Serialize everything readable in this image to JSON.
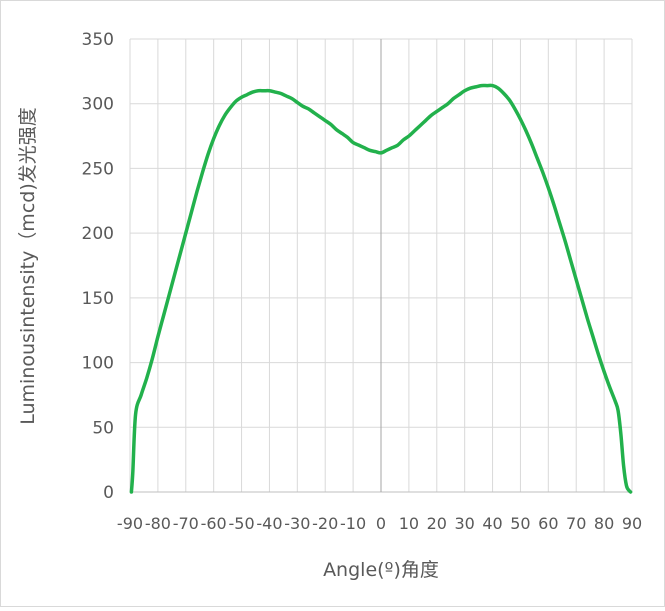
{
  "chart_data": {
    "type": "line",
    "title": "",
    "xlabel": "Angle(º)角度",
    "ylabel": "Luminousintensity（mcd)发光强度",
    "xlim": [
      -90,
      90
    ],
    "ylim": [
      0,
      350
    ],
    "x_ticks": [
      -90,
      -80,
      -70,
      -60,
      -50,
      -40,
      -30,
      -20,
      -10,
      0,
      10,
      20,
      30,
      40,
      50,
      60,
      70,
      80,
      90
    ],
    "y_ticks": [
      0,
      50,
      100,
      150,
      200,
      250,
      300,
      350
    ],
    "grid": true,
    "line_color": "#22b14c",
    "series": [
      {
        "points": [
          [
            -89.5,
            0
          ],
          [
            -89,
            15
          ],
          [
            -88,
            60
          ],
          [
            -86,
            75
          ],
          [
            -84,
            88
          ],
          [
            -82,
            103
          ],
          [
            -80,
            120
          ],
          [
            -78,
            136
          ],
          [
            -76,
            152
          ],
          [
            -74,
            168
          ],
          [
            -72,
            184
          ],
          [
            -70,
            200
          ],
          [
            -68,
            216
          ],
          [
            -66,
            232
          ],
          [
            -64,
            247
          ],
          [
            -62,
            261
          ],
          [
            -60,
            273
          ],
          [
            -58,
            283
          ],
          [
            -56,
            291
          ],
          [
            -54,
            297
          ],
          [
            -52,
            302
          ],
          [
            -50,
            305
          ],
          [
            -48,
            307
          ],
          [
            -46,
            309
          ],
          [
            -44,
            310
          ],
          [
            -42,
            310
          ],
          [
            -40,
            310
          ],
          [
            -38,
            309
          ],
          [
            -36,
            308
          ],
          [
            -34,
            306
          ],
          [
            -32,
            304
          ],
          [
            -30,
            301
          ],
          [
            -28,
            298
          ],
          [
            -26,
            296
          ],
          [
            -24,
            293
          ],
          [
            -22,
            290
          ],
          [
            -20,
            287
          ],
          [
            -18,
            284
          ],
          [
            -16,
            280
          ],
          [
            -14,
            277
          ],
          [
            -12,
            274
          ],
          [
            -10,
            270
          ],
          [
            -8,
            268
          ],
          [
            -6,
            266
          ],
          [
            -4,
            264
          ],
          [
            -2,
            263
          ],
          [
            0,
            262
          ],
          [
            2,
            264
          ],
          [
            4,
            266
          ],
          [
            6,
            268
          ],
          [
            8,
            272
          ],
          [
            10,
            275
          ],
          [
            12,
            279
          ],
          [
            14,
            283
          ],
          [
            16,
            287
          ],
          [
            18,
            291
          ],
          [
            20,
            294
          ],
          [
            22,
            297
          ],
          [
            24,
            300
          ],
          [
            26,
            304
          ],
          [
            28,
            307
          ],
          [
            30,
            310
          ],
          [
            32,
            312
          ],
          [
            34,
            313
          ],
          [
            36,
            314
          ],
          [
            38,
            314
          ],
          [
            40,
            314
          ],
          [
            42,
            312
          ],
          [
            44,
            308
          ],
          [
            46,
            303
          ],
          [
            48,
            296
          ],
          [
            50,
            288
          ],
          [
            52,
            279
          ],
          [
            54,
            269
          ],
          [
            56,
            258
          ],
          [
            58,
            247
          ],
          [
            60,
            235
          ],
          [
            62,
            222
          ],
          [
            64,
            208
          ],
          [
            66,
            194
          ],
          [
            68,
            179
          ],
          [
            70,
            164
          ],
          [
            72,
            149
          ],
          [
            74,
            134
          ],
          [
            76,
            120
          ],
          [
            78,
            106
          ],
          [
            80,
            93
          ],
          [
            82,
            81
          ],
          [
            84,
            70
          ],
          [
            85,
            63
          ],
          [
            86,
            45
          ],
          [
            87,
            20
          ],
          [
            88,
            5
          ],
          [
            89,
            1
          ],
          [
            89.5,
            0
          ]
        ]
      }
    ]
  }
}
